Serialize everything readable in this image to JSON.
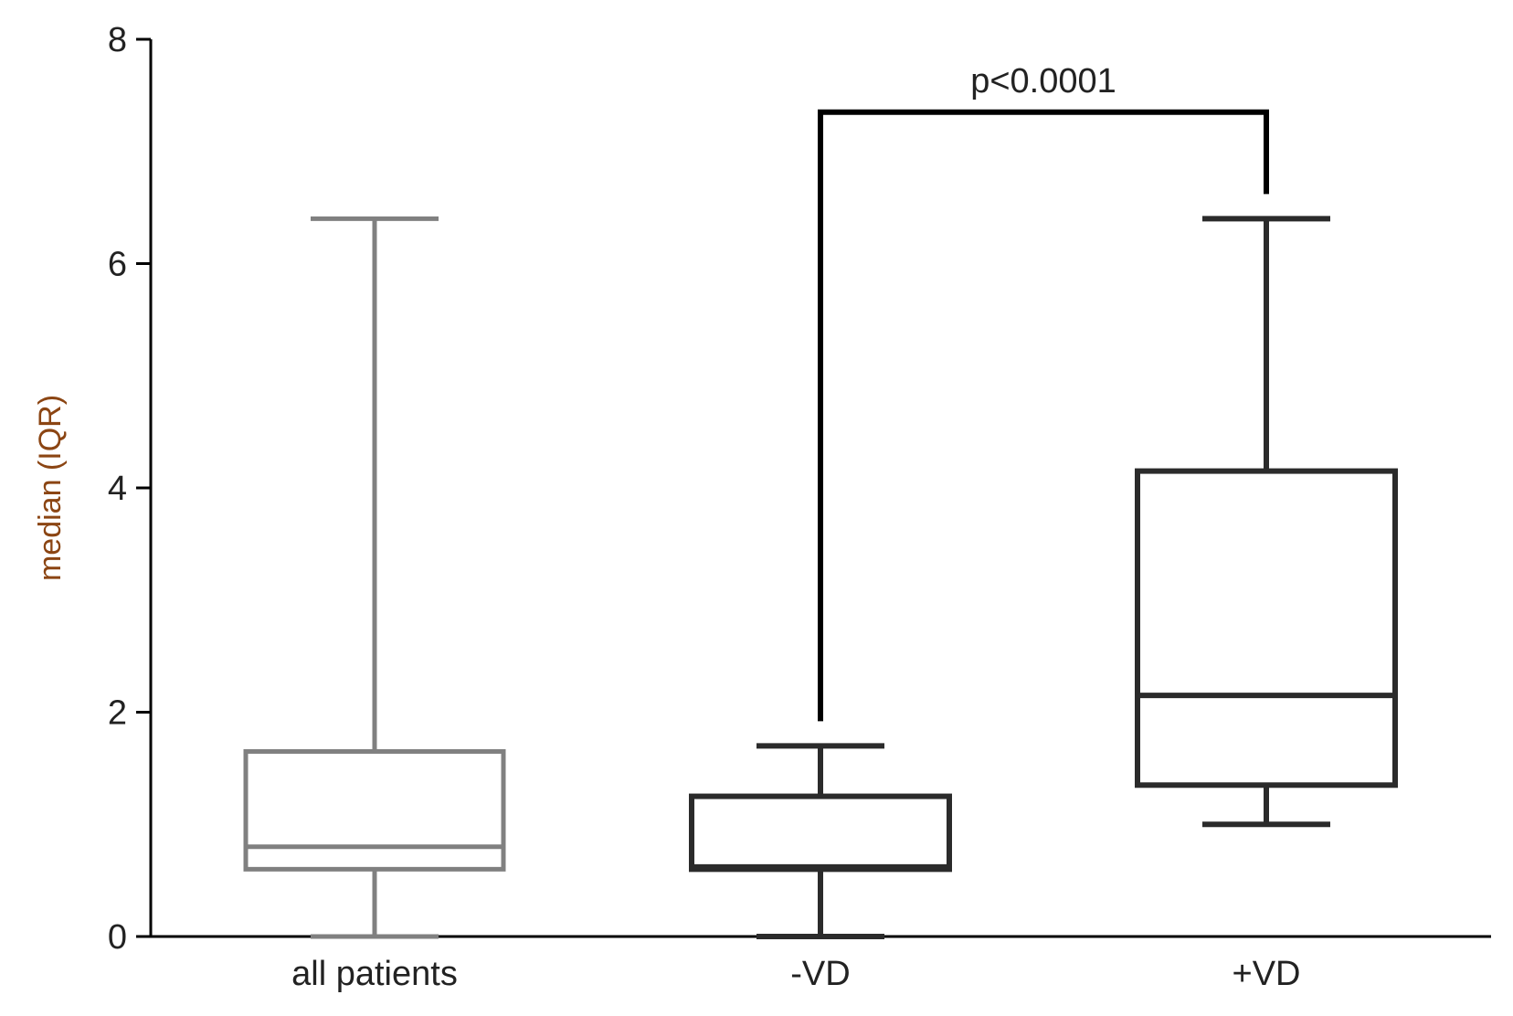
{
  "chart_data": {
    "type": "boxplot",
    "title": "",
    "xlabel": "",
    "ylabel": "median (IQR)",
    "ylim": [
      0,
      8
    ],
    "yticks": [
      0,
      2,
      4,
      6,
      8
    ],
    "ytick_labels": [
      "0",
      "2",
      "4",
      "6",
      "8"
    ],
    "grid": false,
    "legend": "none",
    "categories": [
      "all patients",
      "-VD",
      "+VD"
    ],
    "boxes": [
      {
        "category": "all patients",
        "min": 0.0,
        "q1": 0.6,
        "median": 0.8,
        "q3": 1.65,
        "max": 6.4,
        "color": "#808080"
      },
      {
        "category": "-VD",
        "min": 0.0,
        "q1": 0.6,
        "median": 0.62,
        "q3": 1.25,
        "max": 1.7,
        "color": "#2b2b2b"
      },
      {
        "category": "+VD",
        "min": 1.0,
        "q1": 1.35,
        "median": 2.15,
        "q3": 4.15,
        "max": 6.4,
        "color": "#2b2b2b"
      }
    ],
    "annotations": [
      {
        "text": "p<0.0001",
        "from": "-VD",
        "to": "+VD",
        "bracket_y": 7.35,
        "left_drop_to": 1.92,
        "right_drop_to": 6.62
      }
    ],
    "colors": {
      "axis": "#000000",
      "ylabel": "#8b4513"
    }
  }
}
